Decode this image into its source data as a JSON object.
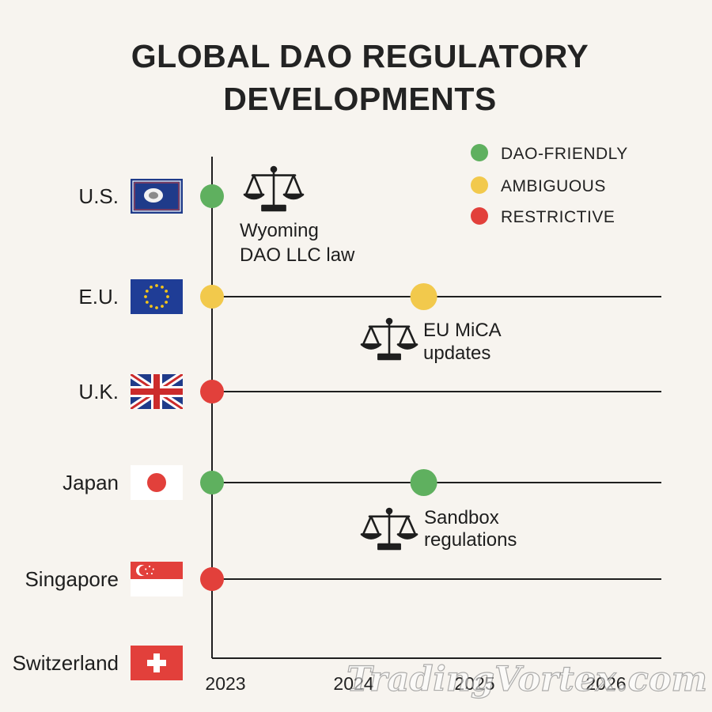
{
  "title": {
    "line1": "GLOBAL DAO REGULATORY",
    "line2": "DEVELOPMENTS"
  },
  "colors": {
    "background": "#f7f4ef",
    "axis": "#1f1f1f",
    "dao_friendly": "#5fb05f",
    "ambiguous": "#f2c94c",
    "restrictive": "#e2403b"
  },
  "legend": [
    {
      "key": "dao_friendly",
      "label": "DAO-FRIENDLY"
    },
    {
      "key": "ambiguous",
      "label": "AMBIGUOUS"
    },
    {
      "key": "restrictive",
      "label": "RESTRICTIVE"
    }
  ],
  "years": [
    "2023",
    "2024",
    "2025",
    "2026"
  ],
  "countries": [
    {
      "name": "U.S.",
      "flag": "us-wyoming-flag-icon"
    },
    {
      "name": "E.U.",
      "flag": "eu-flag-icon"
    },
    {
      "name": "U.K.",
      "flag": "uk-flag-icon"
    },
    {
      "name": "Japan",
      "flag": "japan-flag-icon"
    },
    {
      "name": "Singapore",
      "flag": "singapore-flag-icon"
    },
    {
      "name": "Switzerland",
      "flag": "switzerland-flag-icon"
    }
  ],
  "events": [
    {
      "country": "U.S.",
      "year": 2023,
      "status": "dao_friendly"
    },
    {
      "country": "E.U.",
      "year": 2023,
      "status": "ambiguous"
    },
    {
      "country": "E.U.",
      "year": 2024.2,
      "status": "ambiguous"
    },
    {
      "country": "U.K.",
      "year": 2023,
      "status": "restrictive"
    },
    {
      "country": "Japan",
      "year": 2023,
      "status": "dao_friendly"
    },
    {
      "country": "Japan",
      "year": 2024.2,
      "status": "dao_friendly"
    },
    {
      "country": "Singapore",
      "year": 2023,
      "status": "restrictive"
    }
  ],
  "timelines": [
    {
      "country": "E.U.",
      "from": 2023,
      "to": 2026.5
    },
    {
      "country": "U.K.",
      "from": 2023,
      "to": 2026.5
    },
    {
      "country": "Japan",
      "from": 2023,
      "to": 2026.5
    },
    {
      "country": "Singapore",
      "from": 2023,
      "to": 2026.5
    }
  ],
  "annotations": [
    {
      "id": "wyoming",
      "icon": "scales-icon",
      "lines": [
        "Wyoming",
        "DAO LLC law"
      ]
    },
    {
      "id": "mica",
      "icon": "scales-icon",
      "lines": [
        "EU MiCA",
        "updates"
      ]
    },
    {
      "id": "sandbox",
      "icon": "scales-icon",
      "lines": [
        "Sandbox",
        "regulations"
      ]
    }
  ],
  "watermark": "TradingVortex.com"
}
